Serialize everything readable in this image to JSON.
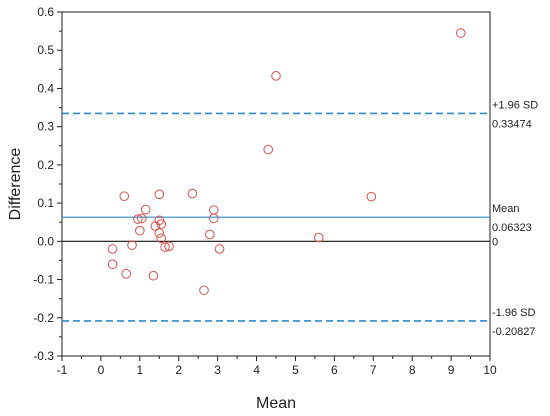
{
  "chart_data": {
    "type": "scatter",
    "xlabel": "Mean",
    "ylabel": "Difference",
    "xlim": [
      -1,
      10
    ],
    "ylim": [
      -0.3,
      0.6
    ],
    "x_ticks": [
      -1,
      0,
      1,
      2,
      3,
      4,
      5,
      6,
      7,
      8,
      9,
      10
    ],
    "y_ticks": [
      -0.3,
      -0.2,
      -0.1,
      0.0,
      0.1,
      0.2,
      0.3,
      0.4,
      0.5,
      0.6
    ],
    "x_tick_labels": [
      "-1",
      "0",
      "1",
      "2",
      "3",
      "4",
      "5",
      "6",
      "7",
      "8",
      "9",
      "10"
    ],
    "y_tick_labels": [
      "-0.3",
      "-0.2",
      "-0.1",
      "0.0",
      "0.1",
      "0.2",
      "0.3",
      "0.4",
      "0.5",
      "0.6"
    ],
    "grid": false,
    "points": [
      {
        "x": 0.3,
        "y": -0.02
      },
      {
        "x": 0.3,
        "y": -0.06
      },
      {
        "x": 0.6,
        "y": 0.118
      },
      {
        "x": 0.65,
        "y": -0.085
      },
      {
        "x": 0.8,
        "y": -0.01
      },
      {
        "x": 0.95,
        "y": 0.058
      },
      {
        "x": 1.0,
        "y": 0.028
      },
      {
        "x": 1.05,
        "y": 0.06
      },
      {
        "x": 1.15,
        "y": 0.083
      },
      {
        "x": 1.35,
        "y": -0.09
      },
      {
        "x": 1.4,
        "y": 0.04
      },
      {
        "x": 1.5,
        "y": 0.123
      },
      {
        "x": 1.5,
        "y": 0.055
      },
      {
        "x": 1.5,
        "y": 0.022
      },
      {
        "x": 1.55,
        "y": 0.008
      },
      {
        "x": 1.55,
        "y": 0.045
      },
      {
        "x": 1.65,
        "y": -0.015
      },
      {
        "x": 1.75,
        "y": -0.013
      },
      {
        "x": 2.35,
        "y": 0.125
      },
      {
        "x": 2.65,
        "y": -0.128
      },
      {
        "x": 2.8,
        "y": 0.018
      },
      {
        "x": 2.9,
        "y": 0.082
      },
      {
        "x": 2.9,
        "y": 0.06
      },
      {
        "x": 3.05,
        "y": -0.02
      },
      {
        "x": 4.3,
        "y": 0.24
      },
      {
        "x": 4.5,
        "y": 0.433
      },
      {
        "x": 5.6,
        "y": 0.01
      },
      {
        "x": 6.95,
        "y": 0.117
      },
      {
        "x": 9.25,
        "y": 0.545
      }
    ],
    "reference_lines": [
      {
        "value": 0.33474,
        "style": "dashed",
        "color": "#2E8BC9",
        "label_top": "+1.96 SD",
        "label_bottom": "0.33474"
      },
      {
        "value": 0.06323,
        "style": "solid",
        "color": "#2E8BC9",
        "label_top": "Mean",
        "label_bottom": "0.06323"
      },
      {
        "value": 0,
        "style": "solid",
        "color": "#111111",
        "label_top": "",
        "label_bottom": "0"
      },
      {
        "value": -0.20827,
        "style": "dashed",
        "color": "#2E8BC9",
        "label_top": "-1.96 SD",
        "label_bottom": "-0.20827"
      }
    ],
    "colors": {
      "marker": "#D9534F",
      "axis": "#222222"
    }
  }
}
